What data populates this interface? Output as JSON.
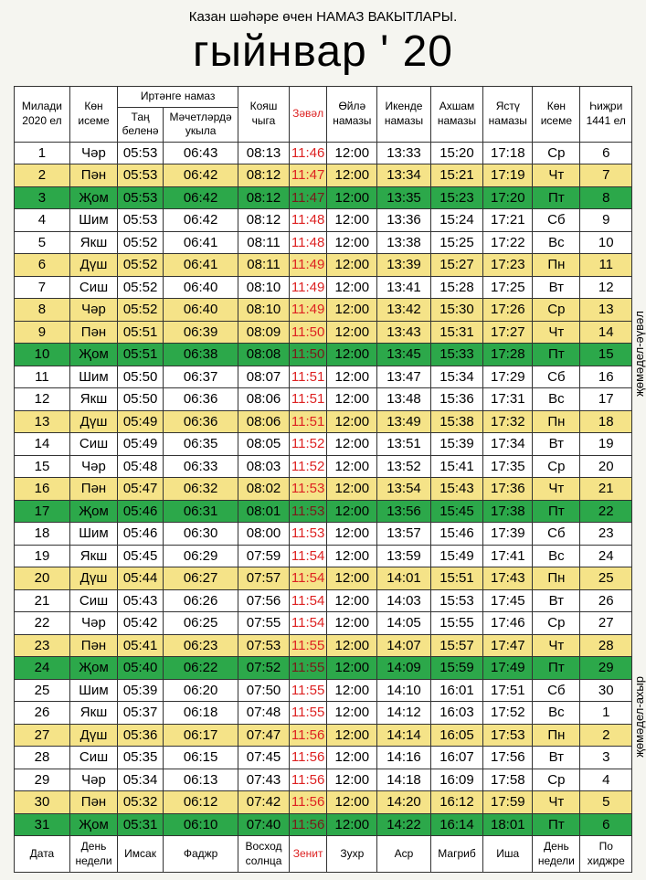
{
  "header_small": "Казан шәһәре өчен НАМАЗ ВАКЫТЛАРЫ.",
  "header_big": "гыйнвар   ' 20",
  "top_headers": {
    "miladi": "Милади 2020 ел",
    "kon_iseme": "Көн исеме",
    "morning_group": "Иртәнге намаз",
    "tan_belene": "Таң беленә",
    "mechet": "Мәчетләрдә укыла",
    "koyash": "Кояш чыга",
    "zaval": "Зәвәл",
    "oyle": "Өйлә намазы",
    "ikende": "Икенде намазы",
    "akhsham": "Ахшам намазы",
    "yastu": "Ястү намазы",
    "kon_iseme2": "Көн исеме",
    "hijri": "Һиҗри 1441 ел"
  },
  "footer": {
    "data": "Дата",
    "den_nedeli": "День недели",
    "imsak": "Имсак",
    "fajr": "Фаджр",
    "voskhod": "Восход солнца",
    "zenit": "Зенит",
    "zuhr": "Зухр",
    "asr": "Аср",
    "magrib": "Магриб",
    "isha": "Иша",
    "den_nedeli2": "День недели",
    "po_hijre": "По хиджре"
  },
  "side1": "җөмәдел-әүвәл",
  "side2": "җөмәдел-ахыр",
  "rows": [
    {
      "d": "1",
      "dn": "Чәр",
      "t1": "05:53",
      "t2": "06:43",
      "t3": "08:13",
      "z": "11:46",
      "t4": "12:00",
      "t5": "13:33",
      "t6": "15:20",
      "t7": "17:18",
      "dn2": "Ср",
      "h": "6",
      "c": "white"
    },
    {
      "d": "2",
      "dn": "Пән",
      "t1": "05:53",
      "t2": "06:42",
      "t3": "08:12",
      "z": "11:47",
      "t4": "12:00",
      "t5": "13:34",
      "t6": "15:21",
      "t7": "17:19",
      "dn2": "Чт",
      "h": "7",
      "c": "yellow"
    },
    {
      "d": "3",
      "dn": "Җом",
      "t1": "05:53",
      "t2": "06:42",
      "t3": "08:12",
      "z": "11:47",
      "t4": "12:00",
      "t5": "13:35",
      "t6": "15:23",
      "t7": "17:20",
      "dn2": "Пт",
      "h": "8",
      "c": "green"
    },
    {
      "d": "4",
      "dn": "Шим",
      "t1": "05:53",
      "t2": "06:42",
      "t3": "08:12",
      "z": "11:48",
      "t4": "12:00",
      "t5": "13:36",
      "t6": "15:24",
      "t7": "17:21",
      "dn2": "Сб",
      "h": "9",
      "c": "white"
    },
    {
      "d": "5",
      "dn": "Якш",
      "t1": "05:52",
      "t2": "06:41",
      "t3": "08:11",
      "z": "11:48",
      "t4": "12:00",
      "t5": "13:38",
      "t6": "15:25",
      "t7": "17:22",
      "dn2": "Вс",
      "h": "10",
      "c": "white"
    },
    {
      "d": "6",
      "dn": "Дүш",
      "t1": "05:52",
      "t2": "06:41",
      "t3": "08:11",
      "z": "11:49",
      "t4": "12:00",
      "t5": "13:39",
      "t6": "15:27",
      "t7": "17:23",
      "dn2": "Пн",
      "h": "11",
      "c": "yellow"
    },
    {
      "d": "7",
      "dn": "Сиш",
      "t1": "05:52",
      "t2": "06:40",
      "t3": "08:10",
      "z": "11:49",
      "t4": "12:00",
      "t5": "13:41",
      "t6": "15:28",
      "t7": "17:25",
      "dn2": "Вт",
      "h": "12",
      "c": "white"
    },
    {
      "d": "8",
      "dn": "Чәр",
      "t1": "05:52",
      "t2": "06:40",
      "t3": "08:10",
      "z": "11:49",
      "t4": "12:00",
      "t5": "13:42",
      "t6": "15:30",
      "t7": "17:26",
      "dn2": "Ср",
      "h": "13",
      "c": "yellow"
    },
    {
      "d": "9",
      "dn": "Пән",
      "t1": "05:51",
      "t2": "06:39",
      "t3": "08:09",
      "z": "11:50",
      "t4": "12:00",
      "t5": "13:43",
      "t6": "15:31",
      "t7": "17:27",
      "dn2": "Чт",
      "h": "14",
      "c": "yellow"
    },
    {
      "d": "10",
      "dn": "Җом",
      "t1": "05:51",
      "t2": "06:38",
      "t3": "08:08",
      "z": "11:50",
      "t4": "12:00",
      "t5": "13:45",
      "t6": "15:33",
      "t7": "17:28",
      "dn2": "Пт",
      "h": "15",
      "c": "green"
    },
    {
      "d": "11",
      "dn": "Шим",
      "t1": "05:50",
      "t2": "06:37",
      "t3": "08:07",
      "z": "11:51",
      "t4": "12:00",
      "t5": "13:47",
      "t6": "15:34",
      "t7": "17:29",
      "dn2": "Сб",
      "h": "16",
      "c": "white"
    },
    {
      "d": "12",
      "dn": "Якш",
      "t1": "05:50",
      "t2": "06:36",
      "t3": "08:06",
      "z": "11:51",
      "t4": "12:00",
      "t5": "13:48",
      "t6": "15:36",
      "t7": "17:31",
      "dn2": "Вс",
      "h": "17",
      "c": "white"
    },
    {
      "d": "13",
      "dn": "Дүш",
      "t1": "05:49",
      "t2": "06:36",
      "t3": "08:06",
      "z": "11:51",
      "t4": "12:00",
      "t5": "13:49",
      "t6": "15:38",
      "t7": "17:32",
      "dn2": "Пн",
      "h": "18",
      "c": "yellow"
    },
    {
      "d": "14",
      "dn": "Сиш",
      "t1": "05:49",
      "t2": "06:35",
      "t3": "08:05",
      "z": "11:52",
      "t4": "12:00",
      "t5": "13:51",
      "t6": "15:39",
      "t7": "17:34",
      "dn2": "Вт",
      "h": "19",
      "c": "white"
    },
    {
      "d": "15",
      "dn": "Чәр",
      "t1": "05:48",
      "t2": "06:33",
      "t3": "08:03",
      "z": "11:52",
      "t4": "12:00",
      "t5": "13:52",
      "t6": "15:41",
      "t7": "17:35",
      "dn2": "Ср",
      "h": "20",
      "c": "white"
    },
    {
      "d": "16",
      "dn": "Пән",
      "t1": "05:47",
      "t2": "06:32",
      "t3": "08:02",
      "z": "11:53",
      "t4": "12:00",
      "t5": "13:54",
      "t6": "15:43",
      "t7": "17:36",
      "dn2": "Чт",
      "h": "21",
      "c": "yellow"
    },
    {
      "d": "17",
      "dn": "Җом",
      "t1": "05:46",
      "t2": "06:31",
      "t3": "08:01",
      "z": "11:53",
      "t4": "12:00",
      "t5": "13:56",
      "t6": "15:45",
      "t7": "17:38",
      "dn2": "Пт",
      "h": "22",
      "c": "green"
    },
    {
      "d": "18",
      "dn": "Шим",
      "t1": "05:46",
      "t2": "06:30",
      "t3": "08:00",
      "z": "11:53",
      "t4": "12:00",
      "t5": "13:57",
      "t6": "15:46",
      "t7": "17:39",
      "dn2": "Сб",
      "h": "23",
      "c": "white"
    },
    {
      "d": "19",
      "dn": "Якш",
      "t1": "05:45",
      "t2": "06:29",
      "t3": "07:59",
      "z": "11:54",
      "t4": "12:00",
      "t5": "13:59",
      "t6": "15:49",
      "t7": "17:41",
      "dn2": "Вс",
      "h": "24",
      "c": "white"
    },
    {
      "d": "20",
      "dn": "Дүш",
      "t1": "05:44",
      "t2": "06:27",
      "t3": "07:57",
      "z": "11:54",
      "t4": "12:00",
      "t5": "14:01",
      "t6": "15:51",
      "t7": "17:43",
      "dn2": "Пн",
      "h": "25",
      "c": "yellow"
    },
    {
      "d": "21",
      "dn": "Сиш",
      "t1": "05:43",
      "t2": "06:26",
      "t3": "07:56",
      "z": "11:54",
      "t4": "12:00",
      "t5": "14:03",
      "t6": "15:53",
      "t7": "17:45",
      "dn2": "Вт",
      "h": "26",
      "c": "white"
    },
    {
      "d": "22",
      "dn": "Чәр",
      "t1": "05:42",
      "t2": "06:25",
      "t3": "07:55",
      "z": "11:54",
      "t4": "12:00",
      "t5": "14:05",
      "t6": "15:55",
      "t7": "17:46",
      "dn2": "Ср",
      "h": "27",
      "c": "white"
    },
    {
      "d": "23",
      "dn": "Пән",
      "t1": "05:41",
      "t2": "06:23",
      "t3": "07:53",
      "z": "11:55",
      "t4": "12:00",
      "t5": "14:07",
      "t6": "15:57",
      "t7": "17:47",
      "dn2": "Чт",
      "h": "28",
      "c": "yellow"
    },
    {
      "d": "24",
      "dn": "Җом",
      "t1": "05:40",
      "t2": "06:22",
      "t3": "07:52",
      "z": "11:55",
      "t4": "12:00",
      "t5": "14:09",
      "t6": "15:59",
      "t7": "17:49",
      "dn2": "Пт",
      "h": "29",
      "c": "green"
    },
    {
      "d": "25",
      "dn": "Шим",
      "t1": "05:39",
      "t2": "06:20",
      "t3": "07:50",
      "z": "11:55",
      "t4": "12:00",
      "t5": "14:10",
      "t6": "16:01",
      "t7": "17:51",
      "dn2": "Сб",
      "h": "30",
      "c": "white"
    },
    {
      "d": "26",
      "dn": "Якш",
      "t1": "05:37",
      "t2": "06:18",
      "t3": "07:48",
      "z": "11:55",
      "t4": "12:00",
      "t5": "14:12",
      "t6": "16:03",
      "t7": "17:52",
      "dn2": "Вс",
      "h": "1",
      "c": "white"
    },
    {
      "d": "27",
      "dn": "Дүш",
      "t1": "05:36",
      "t2": "06:17",
      "t3": "07:47",
      "z": "11:56",
      "t4": "12:00",
      "t5": "14:14",
      "t6": "16:05",
      "t7": "17:53",
      "dn2": "Пн",
      "h": "2",
      "c": "yellow"
    },
    {
      "d": "28",
      "dn": "Сиш",
      "t1": "05:35",
      "t2": "06:15",
      "t3": "07:45",
      "z": "11:56",
      "t4": "12:00",
      "t5": "14:16",
      "t6": "16:07",
      "t7": "17:56",
      "dn2": "Вт",
      "h": "3",
      "c": "white"
    },
    {
      "d": "29",
      "dn": "Чәр",
      "t1": "05:34",
      "t2": "06:13",
      "t3": "07:43",
      "z": "11:56",
      "t4": "12:00",
      "t5": "14:18",
      "t6": "16:09",
      "t7": "17:58",
      "dn2": "Ср",
      "h": "4",
      "c": "white"
    },
    {
      "d": "30",
      "dn": "Пән",
      "t1": "05:32",
      "t2": "06:12",
      "t3": "07:42",
      "z": "11:56",
      "t4": "12:00",
      "t5": "14:20",
      "t6": "16:12",
      "t7": "17:59",
      "dn2": "Чт",
      "h": "5",
      "c": "yellow"
    },
    {
      "d": "31",
      "dn": "Җом",
      "t1": "05:31",
      "t2": "06:10",
      "t3": "07:40",
      "z": "11:56",
      "t4": "12:00",
      "t5": "14:22",
      "t6": "16:14",
      "t7": "18:01",
      "dn2": "Пт",
      "h": "6",
      "c": "green"
    }
  ]
}
